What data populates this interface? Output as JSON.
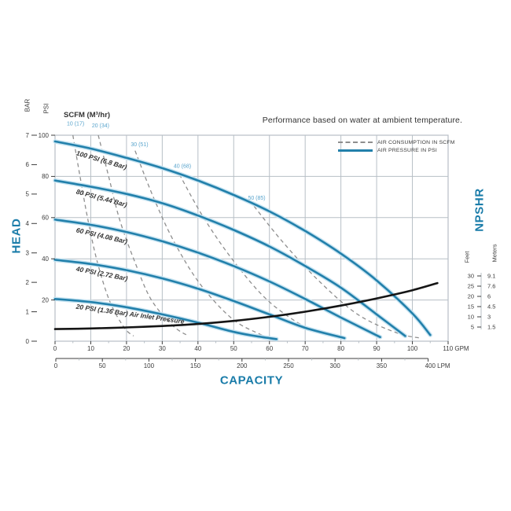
{
  "title": "Performance based on water at ambient temperature.",
  "labels": {
    "head": "HEAD",
    "capacity": "CAPACITY",
    "npshr": "NPSHR",
    "bar": "BAR",
    "psi": "PSI",
    "scfm_header": "SCFM (M³/hr)",
    "feet": "Feet",
    "meters": "Meters"
  },
  "legend": {
    "items": [
      {
        "label": "AIR CONSUMPTION IN SCFM",
        "style": "dashed",
        "color": "#8e8e8e"
      },
      {
        "label": "AIR PRESSURE IN PSI",
        "style": "solid",
        "color": "#2280ab"
      }
    ]
  },
  "colors": {
    "accent": "#1a7ca9",
    "pressure_curve": "#2280ab",
    "pressure_halo": "#c6e3f1",
    "air_dash": "#8e8e8e",
    "npshr_curve": "#151515",
    "grid": "#b7bfc6",
    "text": "#3c3c3c",
    "scfm_label": "#5aa5cd"
  },
  "chart_data": {
    "type": "line",
    "title": "Performance based on water at ambient temperature.",
    "xlabel": "CAPACITY",
    "ylabel": "HEAD",
    "x_axis_gpm": {
      "unit": "GPM",
      "range": [
        0,
        110
      ],
      "ticks": [
        0,
        10,
        20,
        30,
        40,
        50,
        60,
        70,
        80,
        90,
        100,
        110
      ]
    },
    "x_axis_lpm": {
      "unit": "LPM",
      "range": [
        0,
        400
      ],
      "ticks": [
        0,
        50,
        100,
        150,
        200,
        250,
        300,
        350,
        400
      ]
    },
    "y_axis_psi": {
      "unit": "PSI",
      "range": [
        0,
        100
      ],
      "ticks": [
        20,
        40,
        60,
        80,
        100
      ]
    },
    "y_axis_bar": {
      "unit": "BAR",
      "range": [
        0,
        7
      ],
      "ticks": [
        0,
        1,
        2,
        3,
        4,
        5,
        6,
        7
      ]
    },
    "npshr_scale": {
      "feet_label": "Feet",
      "meters_label": "Meters",
      "feet": [
        30,
        25,
        20,
        15,
        10,
        5
      ],
      "meters": [
        "9.1",
        "7.6",
        "6",
        "4.5",
        "3",
        "1.5"
      ]
    },
    "pressure_series": [
      {
        "label": "100 PSI (6.8 Bar)",
        "points": [
          [
            0,
            97
          ],
          [
            10,
            93.5
          ],
          [
            20,
            89
          ],
          [
            30,
            84
          ],
          [
            40,
            78
          ],
          [
            50,
            71
          ],
          [
            60,
            63
          ],
          [
            70,
            53.5
          ],
          [
            80,
            42.5
          ],
          [
            90,
            29.5
          ],
          [
            100,
            13.5
          ],
          [
            105,
            3
          ]
        ]
      },
      {
        "label": "80 PSI (5.44 Bar)",
        "points": [
          [
            0,
            78
          ],
          [
            10,
            75
          ],
          [
            20,
            71.5
          ],
          [
            30,
            67
          ],
          [
            40,
            61
          ],
          [
            50,
            54
          ],
          [
            60,
            46
          ],
          [
            70,
            36.5
          ],
          [
            80,
            26
          ],
          [
            90,
            13
          ],
          [
            98,
            2.5
          ]
        ]
      },
      {
        "label": "60 PSI (4.08 Bar)",
        "points": [
          [
            0,
            59
          ],
          [
            10,
            56.5
          ],
          [
            20,
            53
          ],
          [
            30,
            48.5
          ],
          [
            40,
            43
          ],
          [
            50,
            36.5
          ],
          [
            60,
            29
          ],
          [
            70,
            20.5
          ],
          [
            80,
            11.5
          ],
          [
            91,
            2
          ]
        ]
      },
      {
        "label": "40 PSI (2.72 Bar)",
        "points": [
          [
            0,
            39.5
          ],
          [
            10,
            37.5
          ],
          [
            20,
            34.5
          ],
          [
            30,
            30.5
          ],
          [
            40,
            25.5
          ],
          [
            50,
            19.5
          ],
          [
            60,
            13
          ],
          [
            70,
            6.5
          ],
          [
            81,
            1.5
          ]
        ]
      },
      {
        "label": "20 PSI (1.36 Bar) Air Inlet Pressure",
        "points": [
          [
            0,
            20.5
          ],
          [
            10,
            19
          ],
          [
            20,
            16.5
          ],
          [
            30,
            13
          ],
          [
            40,
            9
          ],
          [
            50,
            4.5
          ],
          [
            56,
            2.5
          ],
          [
            62,
            1
          ]
        ]
      }
    ],
    "air_consumption_series": [
      {
        "label": "10 (17)",
        "label_at": [
          3.3,
          105.5
        ],
        "points": [
          [
            5,
            100
          ],
          [
            7,
            80
          ],
          [
            9.2,
            59
          ],
          [
            11.9,
            38
          ],
          [
            15.4,
            19
          ],
          [
            19.4,
            6.5
          ],
          [
            22,
            2.5
          ]
        ]
      },
      {
        "label": "20 (34)",
        "label_at": [
          10.3,
          104.5
        ],
        "points": [
          [
            12.1,
            100
          ],
          [
            15,
            80
          ],
          [
            18,
            59.5
          ],
          [
            22,
            40
          ],
          [
            26.8,
            20.5
          ],
          [
            33,
            7.5
          ],
          [
            37.4,
            2.5
          ]
        ]
      },
      {
        "label": "30 (51)",
        "label_at": [
          21.2,
          95.5
        ],
        "points": [
          [
            22.4,
            92.5
          ],
          [
            27.5,
            70
          ],
          [
            33.4,
            48
          ],
          [
            40.7,
            27.5
          ],
          [
            49.5,
            11
          ],
          [
            57.2,
            3.5
          ],
          [
            60.5,
            1.5
          ]
        ]
      },
      {
        "label": "40 (68)",
        "label_at": [
          33.2,
          85
        ],
        "points": [
          [
            34.8,
            81
          ],
          [
            41.4,
            60.5
          ],
          [
            49.5,
            40
          ],
          [
            59.4,
            20
          ],
          [
            70.4,
            6.5
          ],
          [
            78.1,
            2.5
          ]
        ]
      },
      {
        "label": "50 (85)",
        "label_at": [
          54,
          69.5
        ],
        "points": [
          [
            55.7,
            65.5
          ],
          [
            63.8,
            48
          ],
          [
            73.7,
            29.5
          ],
          [
            84.7,
            13
          ],
          [
            95.7,
            4
          ],
          [
            102.3,
            1.5
          ]
        ]
      }
    ],
    "npshr_series": {
      "name": "NPSHR",
      "units": "feet",
      "points": [
        [
          0,
          4
        ],
        [
          10,
          4.3
        ],
        [
          20,
          4.8
        ],
        [
          30,
          5.5
        ],
        [
          40,
          6.5
        ],
        [
          50,
          8
        ],
        [
          60,
          10
        ],
        [
          70,
          12.5
        ],
        [
          80,
          15.5
        ],
        [
          90,
          19
        ],
        [
          100,
          23
        ],
        [
          107,
          26.5
        ]
      ]
    }
  }
}
